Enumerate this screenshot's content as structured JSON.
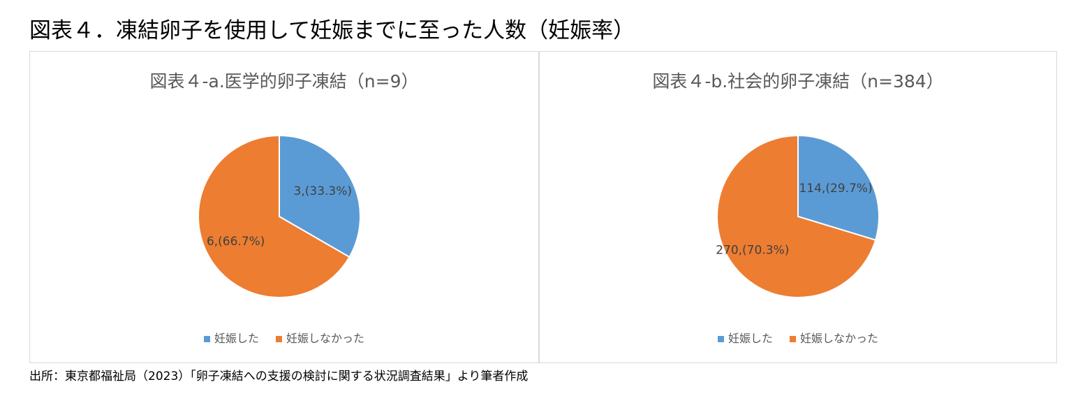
{
  "page": {
    "title": "図表４．凍結卵子を使用して妊娠までに至った人数（妊娠率）",
    "source": "出所：東京都福祉局（2023）「卵子凍結への支援の検討に関する状況調査結果」より筆者作成"
  },
  "colors": {
    "pregnant": "#5b9bd5",
    "not_pregnant": "#ed7d31"
  },
  "chart_data": [
    {
      "type": "pie",
      "title": "図表４-a.医学的卵子凍結（n=9）",
      "categories": [
        "妊娠した",
        "妊娠しなかった"
      ],
      "values": [
        3,
        6
      ],
      "labels": [
        "3,(33.3%)",
        "6,(66.7%)"
      ],
      "legend": "bottom"
    },
    {
      "type": "pie",
      "title": "図表４-b.社会的卵子凍結（n=384）",
      "categories": [
        "妊娠した",
        "妊娠しなかった"
      ],
      "values": [
        114,
        270
      ],
      "labels": [
        "114,(29.7%)",
        "270,(70.3%)"
      ],
      "legend": "bottom"
    }
  ]
}
